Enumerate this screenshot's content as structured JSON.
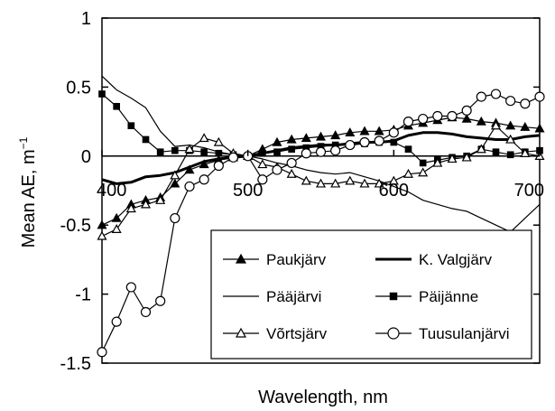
{
  "chart_data": {
    "type": "line",
    "xlabel": "Wavelength, nm",
    "ylabel": "Mean AE, m",
    "ylabel_superscript": "−1",
    "xlim": [
      400,
      700
    ],
    "ylim": [
      -1.5,
      1.0
    ],
    "x_ticks": [
      "400",
      "500",
      "600",
      "700"
    ],
    "x_tick_values": [
      400,
      500,
      600,
      700
    ],
    "y_ticks": [
      "1",
      "0.5",
      "0",
      "-0.5",
      "-1",
      "-1.5"
    ],
    "y_tick_values": [
      1,
      0.5,
      0,
      -0.5,
      -1,
      -1.5
    ],
    "grid": false,
    "legend_position": "bottom-right",
    "series": [
      {
        "name": "Paukjärv",
        "marker": "filled-triangle",
        "line": "thin",
        "x": [
          400,
          410,
          420,
          430,
          440,
          450,
          460,
          470,
          480,
          490,
          500,
          510,
          520,
          530,
          540,
          550,
          560,
          570,
          580,
          590,
          600,
          610,
          620,
          630,
          640,
          650,
          660,
          670,
          680,
          690,
          700
        ],
        "y": [
          -0.5,
          -0.45,
          -0.35,
          -0.32,
          -0.3,
          -0.2,
          -0.1,
          -0.06,
          -0.03,
          -0.01,
          0.0,
          0.05,
          0.1,
          0.12,
          0.13,
          0.14,
          0.15,
          0.17,
          0.18,
          0.18,
          0.19,
          0.22,
          0.24,
          0.26,
          0.28,
          0.27,
          0.25,
          0.24,
          0.22,
          0.21,
          0.2
        ]
      },
      {
        "name": "K. Valgjärv",
        "marker": "none",
        "line": "thick",
        "x": [
          400,
          410,
          420,
          430,
          440,
          450,
          460,
          470,
          480,
          490,
          500,
          510,
          520,
          530,
          540,
          550,
          560,
          570,
          580,
          590,
          600,
          610,
          620,
          630,
          640,
          650,
          660,
          670,
          680,
          690,
          700
        ],
        "y": [
          -0.17,
          -0.2,
          -0.19,
          -0.15,
          -0.14,
          -0.12,
          -0.08,
          -0.04,
          -0.02,
          -0.01,
          0.0,
          0.02,
          0.04,
          0.06,
          0.07,
          0.08,
          0.08,
          0.09,
          0.1,
          0.1,
          0.11,
          0.15,
          0.17,
          0.17,
          0.16,
          0.14,
          0.13,
          0.12,
          0.12,
          0.14,
          0.15
        ]
      },
      {
        "name": "Pääjärvi",
        "marker": "none",
        "line": "thin",
        "x": [
          400,
          410,
          420,
          430,
          440,
          450,
          460,
          470,
          480,
          490,
          500,
          510,
          520,
          530,
          540,
          550,
          560,
          570,
          580,
          590,
          600,
          610,
          620,
          630,
          640,
          650,
          660,
          670,
          680,
          690,
          700
        ],
        "y": [
          0.58,
          0.48,
          0.42,
          0.35,
          0.18,
          0.07,
          0.08,
          0.06,
          0.03,
          0.01,
          0.0,
          -0.02,
          -0.05,
          -0.07,
          -0.1,
          -0.12,
          -0.13,
          -0.12,
          -0.15,
          -0.18,
          -0.22,
          -0.26,
          -0.32,
          -0.35,
          -0.38,
          -0.4,
          -0.45,
          -0.5,
          -0.55,
          -0.45,
          -0.35
        ]
      },
      {
        "name": "Päijänne",
        "marker": "filled-square",
        "line": "thin",
        "x": [
          400,
          410,
          420,
          430,
          440,
          450,
          460,
          470,
          480,
          490,
          500,
          510,
          520,
          530,
          540,
          550,
          560,
          570,
          580,
          590,
          600,
          610,
          620,
          630,
          640,
          650,
          660,
          670,
          680,
          690,
          700
        ],
        "y": [
          0.45,
          0.36,
          0.22,
          0.12,
          0.03,
          0.04,
          0.04,
          0.03,
          0.02,
          0.01,
          0.0,
          0.02,
          0.03,
          0.05,
          0.06,
          0.07,
          0.08,
          0.08,
          0.09,
          0.1,
          0.1,
          0.05,
          -0.05,
          -0.03,
          -0.01,
          0.0,
          0.05,
          0.03,
          0.01,
          0.03,
          0.04
        ]
      },
      {
        "name": "Võrtsjärv",
        "marker": "open-triangle",
        "line": "thin",
        "x": [
          400,
          410,
          420,
          430,
          440,
          450,
          460,
          470,
          480,
          490,
          500,
          510,
          520,
          530,
          540,
          550,
          560,
          570,
          580,
          590,
          600,
          610,
          620,
          630,
          640,
          650,
          660,
          670,
          680,
          690,
          700
        ],
        "y": [
          -0.58,
          -0.53,
          -0.38,
          -0.35,
          -0.32,
          -0.14,
          0.05,
          0.13,
          0.1,
          0.02,
          0.0,
          -0.06,
          -0.08,
          -0.13,
          -0.18,
          -0.2,
          -0.2,
          -0.18,
          -0.2,
          -0.2,
          -0.18,
          -0.13,
          -0.12,
          -0.05,
          -0.02,
          -0.01,
          0.05,
          0.22,
          0.12,
          0.02,
          0.0
        ]
      },
      {
        "name": "Tuusulanjärvi",
        "marker": "open-circle",
        "line": "thin",
        "x": [
          400,
          410,
          420,
          430,
          440,
          450,
          460,
          470,
          480,
          490,
          500,
          510,
          520,
          530,
          540,
          550,
          560,
          570,
          580,
          590,
          600,
          610,
          620,
          630,
          640,
          650,
          660,
          670,
          680,
          690,
          700
        ],
        "y": [
          -1.42,
          -1.2,
          -0.95,
          -1.13,
          -1.05,
          -0.45,
          -0.22,
          -0.17,
          -0.07,
          -0.01,
          0.0,
          -0.17,
          -0.1,
          -0.05,
          0.02,
          0.03,
          0.04,
          0.08,
          0.1,
          0.11,
          0.17,
          0.25,
          0.27,
          0.29,
          0.29,
          0.33,
          0.43,
          0.45,
          0.4,
          0.38,
          0.43
        ]
      }
    ]
  }
}
